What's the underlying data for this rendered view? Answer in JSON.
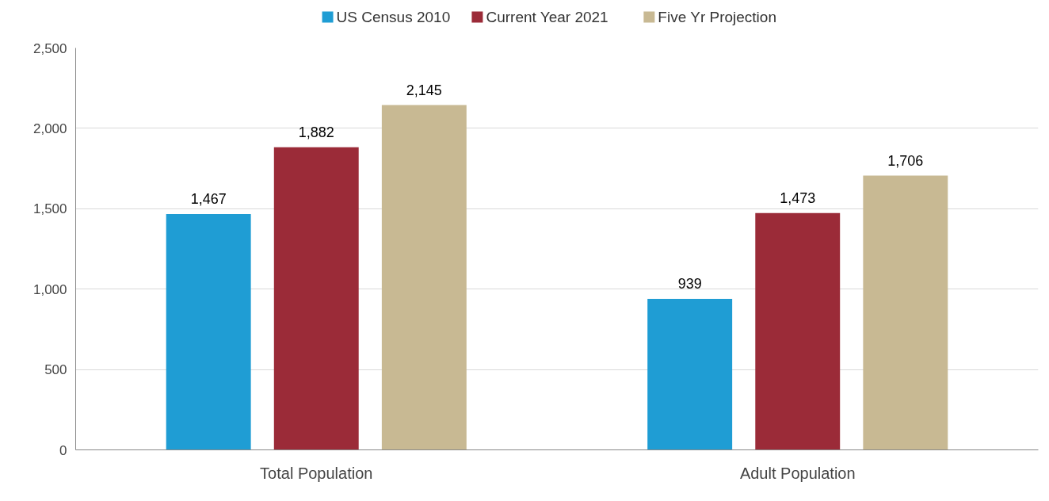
{
  "chart_data": {
    "type": "bar",
    "categories": [
      "Total Population",
      "Adult Population"
    ],
    "series": [
      {
        "name": "US Census 2010",
        "color": "#1f9dd4",
        "values": [
          1467,
          939
        ],
        "value_labels": [
          "1,467",
          "939"
        ]
      },
      {
        "name": "Current Year 2021",
        "color": "#9b2b38",
        "values": [
          1882,
          1473
        ],
        "value_labels": [
          "1,882",
          "1,473"
        ]
      },
      {
        "name": "Five Yr Projection",
        "color": "#c8b993",
        "values": [
          2145,
          1706
        ],
        "value_labels": [
          "2,145",
          "1,706"
        ]
      }
    ],
    "ylim": [
      0,
      2500
    ],
    "yticks": [
      {
        "value": 0,
        "label": "0"
      },
      {
        "value": 500,
        "label": "500"
      },
      {
        "value": 1000,
        "label": "1,000"
      },
      {
        "value": 1500,
        "label": "1,500"
      },
      {
        "value": 2000,
        "label": "2,000"
      },
      {
        "value": 2500,
        "label": "2,500"
      }
    ],
    "grid": "y",
    "legend": "top",
    "data_labels": true
  }
}
